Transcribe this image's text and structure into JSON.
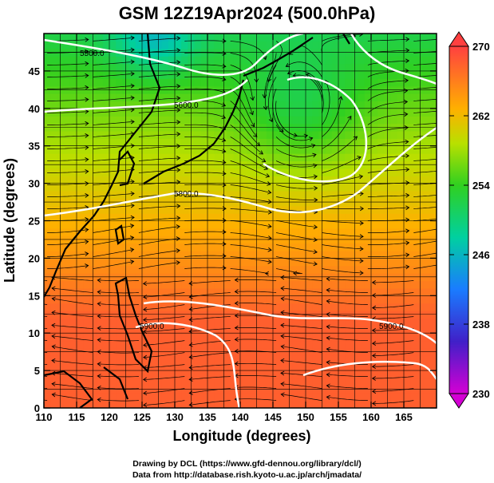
{
  "title": "GSM 12Z19Apr2024 (500.0hPa)",
  "axes": {
    "xlabel": "Longitude (degrees)",
    "ylabel": "Latitude  (degrees)",
    "xticks": [
      "110",
      "115",
      "120",
      "125",
      "130",
      "135",
      "140",
      "145",
      "150",
      "155",
      "160",
      "165"
    ],
    "yticks": [
      "0",
      "5",
      "10",
      "15",
      "20",
      "25",
      "30",
      "35",
      "40",
      "45"
    ],
    "xlim": [
      110,
      170
    ],
    "ylim": [
      0,
      50
    ]
  },
  "colorbar": {
    "ticks": [
      "230",
      "238",
      "246",
      "254",
      "262",
      "270"
    ],
    "range": [
      230,
      270
    ],
    "colors": [
      "#d400d4",
      "#2020d0",
      "#00b0ff",
      "#00d070",
      "#30d000",
      "#e0e000",
      "#ffa000",
      "#ff4040"
    ]
  },
  "contour_labels": [
    "5500.0",
    "5600.0",
    "5800.0",
    "5900.0",
    "5900.0"
  ],
  "credits": {
    "line1": "Drawing by DCL (https://www.gfd-dennou.org/library/dcl/)",
    "line2": "Data from http://database.rish.kyoto-u.ac.jp/arch/jmadata/"
  },
  "chart_data": {
    "type": "heatmap",
    "title": "GSM 12Z19Apr2024 (500.0hPa)",
    "xlabel": "Longitude (degrees)",
    "ylabel": "Latitude  (degrees)",
    "xlim": [
      110,
      170
    ],
    "ylim": [
      0,
      50
    ],
    "color_variable_range": [
      230,
      270
    ],
    "grid": true,
    "overlays": [
      "wind streamlines",
      "geopotential height contours (white)",
      "coastlines (black)"
    ],
    "contours": [
      {
        "label": "5500.0",
        "lat_approx": 46.5
      },
      {
        "label": "5600.0",
        "lat_approx": 40
      },
      {
        "label": "5800.0",
        "lat_approx": 29
      },
      {
        "label": "5900.0",
        "lat_approx": 11
      },
      {
        "label": "5900.0",
        "lat_approx": 5
      }
    ],
    "cyclone_center": {
      "lon": 149,
      "lat": 39
    }
  }
}
